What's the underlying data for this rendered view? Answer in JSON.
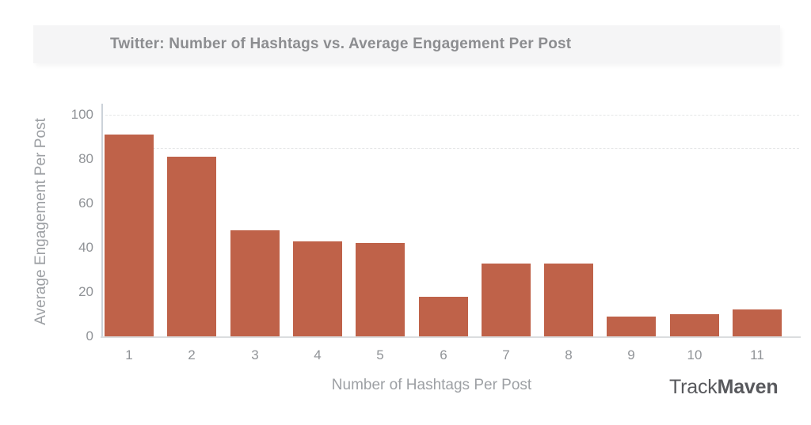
{
  "page": {
    "background": "#ffffff"
  },
  "header": {
    "title": "Twitter: Number of Hashtags vs. Average Engagement Per Post",
    "background": "#f5f5f6",
    "text_color": "#8c8d90"
  },
  "branding": {
    "logo_prefix": "Track",
    "logo_suffix": "Maven",
    "color": "#58595d"
  },
  "chart_data": {
    "type": "bar",
    "title": "Twitter: Number of Hashtags vs. Average Engagement Per Post",
    "categories": [
      "1",
      "2",
      "3",
      "4",
      "5",
      "6",
      "7",
      "8",
      "9",
      "10",
      "11"
    ],
    "values": [
      91,
      81,
      48,
      43,
      42,
      18,
      33,
      33,
      9,
      10,
      12
    ],
    "xlabel": "Number of Hashtags Per Post",
    "ylabel": "Average Engagement Per Post",
    "ylim": [
      0,
      100
    ],
    "yticks": [
      0,
      20,
      40,
      60,
      80,
      100
    ],
    "bar_color": "#bf6249",
    "axis_color": "#ccd3d9",
    "tick_label_color": "#909397",
    "grid": false,
    "faint_dashed_gridlines_y": [
      100,
      85
    ],
    "legend": null
  }
}
